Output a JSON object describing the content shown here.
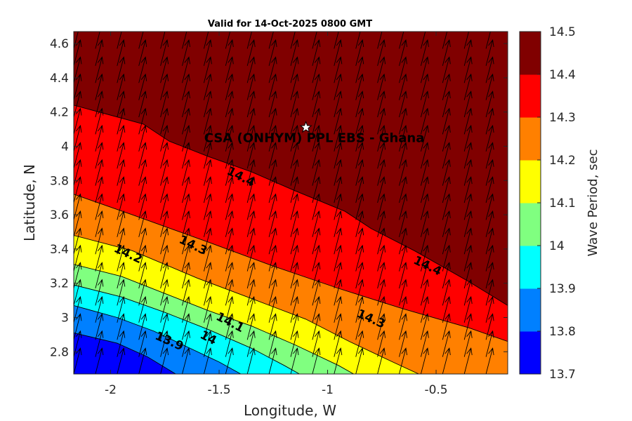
{
  "chart_data": {
    "type": "contourf",
    "title": "Valid for 14-Oct-2025 0800 GMT",
    "xlabel": "Longitude, W",
    "ylabel": "Latitude, N",
    "xlim": [
      -2.17,
      -0.17
    ],
    "ylim": [
      2.67,
      4.67
    ],
    "x_ticks": [
      -2,
      -1.5,
      -1,
      -0.5
    ],
    "x_tick_labels": [
      "-2",
      "-1.5",
      "-1",
      "-0.5"
    ],
    "y_ticks": [
      2.8,
      3,
      3.2,
      3.4,
      3.6,
      3.8,
      4,
      4.2,
      4.4,
      4.6
    ],
    "y_tick_labels": [
      "2.8",
      "3",
      "3.2",
      "3.4",
      "3.6",
      "3.8",
      "4",
      "4.2",
      "4.4",
      "4.6"
    ],
    "colorbar": {
      "label": "Wave Period, sec",
      "levels": [
        13.7,
        13.8,
        13.9,
        14,
        14.1,
        14.2,
        14.3,
        14.4,
        14.5
      ],
      "level_labels": [
        "13.7",
        "13.8",
        "13.9",
        "14",
        "14.1",
        "14.2",
        "14.3",
        "14.4",
        "14.5"
      ],
      "colors": [
        "#0000ff",
        "#0080ff",
        "#00ffff",
        "#80ff80",
        "#ffff00",
        "#ff8000",
        "#ff0000",
        "#800000"
      ]
    },
    "contours": [
      {
        "level": 13.8,
        "points": [
          [
            -2.17,
            2.91
          ],
          [
            -1.97,
            2.85
          ],
          [
            -1.83,
            2.77
          ],
          [
            -1.7,
            2.67
          ]
        ]
      },
      {
        "level": 13.9,
        "points": [
          [
            -2.17,
            3.07
          ],
          [
            -1.97,
            3.0
          ],
          [
            -1.8,
            2.92
          ],
          [
            -1.65,
            2.83
          ],
          [
            -1.5,
            2.74
          ],
          [
            -1.4,
            2.67
          ]
        ]
      },
      {
        "level": 14,
        "points": [
          [
            -2.17,
            3.19
          ],
          [
            -1.95,
            3.12
          ],
          [
            -1.75,
            3.03
          ],
          [
            -1.55,
            2.93
          ],
          [
            -1.35,
            2.82
          ],
          [
            -1.2,
            2.72
          ],
          [
            -1.13,
            2.67
          ]
        ]
      },
      {
        "level": 14.1,
        "points": [
          [
            -2.17,
            3.31
          ],
          [
            -1.95,
            3.24
          ],
          [
            -1.75,
            3.14
          ],
          [
            -1.55,
            3.04
          ],
          [
            -1.35,
            2.95
          ],
          [
            -1.15,
            2.84
          ],
          [
            -0.95,
            2.72
          ],
          [
            -0.88,
            2.67
          ]
        ]
      },
      {
        "level": 14.2,
        "points": [
          [
            -2.17,
            3.48
          ],
          [
            -1.9,
            3.39
          ],
          [
            -1.6,
            3.23
          ],
          [
            -1.35,
            3.11
          ],
          [
            -1.1,
            2.99
          ],
          [
            -0.9,
            2.86
          ],
          [
            -0.7,
            2.74
          ],
          [
            -0.58,
            2.67
          ]
        ]
      },
      {
        "level": 14.3,
        "points": [
          [
            -2.17,
            3.72
          ],
          [
            -1.9,
            3.6
          ],
          [
            -1.55,
            3.44
          ],
          [
            -1.25,
            3.3
          ],
          [
            -0.95,
            3.17
          ],
          [
            -0.65,
            3.05
          ],
          [
            -0.35,
            2.94
          ],
          [
            -0.17,
            2.86
          ]
        ]
      },
      {
        "level": 14.4,
        "points": [
          [
            -2.17,
            4.24
          ],
          [
            -1.85,
            4.13
          ],
          [
            -1.73,
            4.03
          ],
          [
            -1.55,
            3.94
          ],
          [
            -1.35,
            3.85
          ],
          [
            -1.15,
            3.74
          ],
          [
            -0.92,
            3.62
          ],
          [
            -0.8,
            3.52
          ],
          [
            -0.6,
            3.39
          ],
          [
            -0.35,
            3.21
          ],
          [
            -0.17,
            3.07
          ]
        ]
      }
    ],
    "contour_labels": [
      {
        "text": "14.4",
        "x": -1.4,
        "y": 3.82,
        "angle": 27
      },
      {
        "text": "14.4",
        "x": -0.54,
        "y": 3.3,
        "angle": 26
      },
      {
        "text": "14.3",
        "x": -1.62,
        "y": 3.42,
        "angle": 26
      },
      {
        "text": "14.3",
        "x": -0.8,
        "y": 2.99,
        "angle": 24
      },
      {
        "text": "14.2",
        "x": -1.92,
        "y": 3.37,
        "angle": 25
      },
      {
        "text": "14.1",
        "x": -1.45,
        "y": 2.97,
        "angle": 27
      },
      {
        "text": "14",
        "x": -1.55,
        "y": 2.88,
        "angle": 27
      },
      {
        "text": "13.9",
        "x": -1.73,
        "y": 2.86,
        "angle": 24
      }
    ],
    "vector_field": {
      "description": "wave direction arrows on regular grid",
      "lon_start": -2.17,
      "lon_step": 0.1,
      "lat_start": 2.67,
      "lat_step": 0.1,
      "u": 0.25,
      "v": 0.97
    },
    "site_marker": {
      "label": "CSA (ONHYM) PPL EBS  - Ghana",
      "x": -1.1,
      "y": 4.11
    }
  }
}
